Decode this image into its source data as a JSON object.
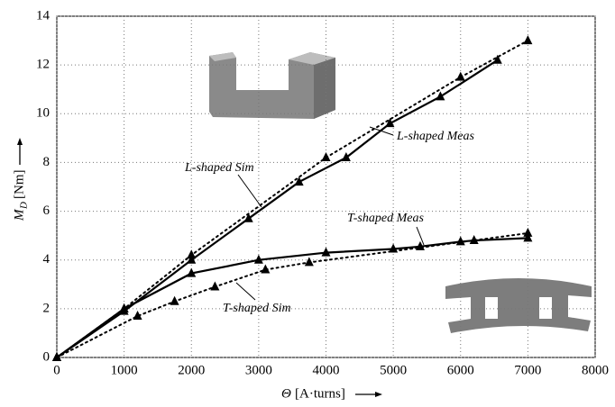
{
  "chart_data": {
    "type": "line",
    "xlabel": {
      "symbol": "Θ",
      "unit": "[A·turns]"
    },
    "ylabel": {
      "symbol": "M",
      "subscript": "D",
      "unit": "[Nm]"
    },
    "xlim": [
      0,
      8000
    ],
    "xticks": [
      0,
      1000,
      2000,
      3000,
      4000,
      5000,
      6000,
      7000,
      8000
    ],
    "ylim": [
      0,
      14
    ],
    "yticks": [
      0,
      2,
      4,
      6,
      8,
      10,
      12,
      14
    ],
    "grid": true,
    "series": [
      {
        "name": "L-shaped Sim",
        "color": "#000000",
        "style": "dotted",
        "marker": "triangle",
        "x": [
          0,
          1000,
          2000,
          4000,
          6000,
          7000
        ],
        "values": [
          0,
          2.0,
          4.2,
          8.2,
          11.5,
          13.0
        ]
      },
      {
        "name": "L-shaped Meas",
        "color": "#000000",
        "style": "solid",
        "marker": "triangle",
        "x": [
          0,
          1000,
          2000,
          2850,
          3600,
          4300,
          4950,
          5700,
          6550
        ],
        "values": [
          0,
          1.9,
          4.0,
          5.7,
          7.2,
          8.2,
          9.6,
          10.7,
          12.2
        ]
      },
      {
        "name": "T-shaped Meas",
        "color": "#000000",
        "style": "solid",
        "marker": "triangle",
        "x": [
          0,
          1000,
          2000,
          3000,
          4000,
          5000,
          5400,
          6000,
          6200,
          7000
        ],
        "values": [
          0,
          2.0,
          3.45,
          4.0,
          4.3,
          4.45,
          4.55,
          4.75,
          4.8,
          4.9
        ]
      },
      {
        "name": "T-shaped Sim",
        "color": "#000000",
        "style": "dotted",
        "marker": "triangle",
        "x": [
          0,
          1200,
          1750,
          2350,
          3100,
          3750,
          7000
        ],
        "values": [
          0,
          1.7,
          2.3,
          2.9,
          3.6,
          3.9,
          5.1
        ]
      }
    ]
  }
}
